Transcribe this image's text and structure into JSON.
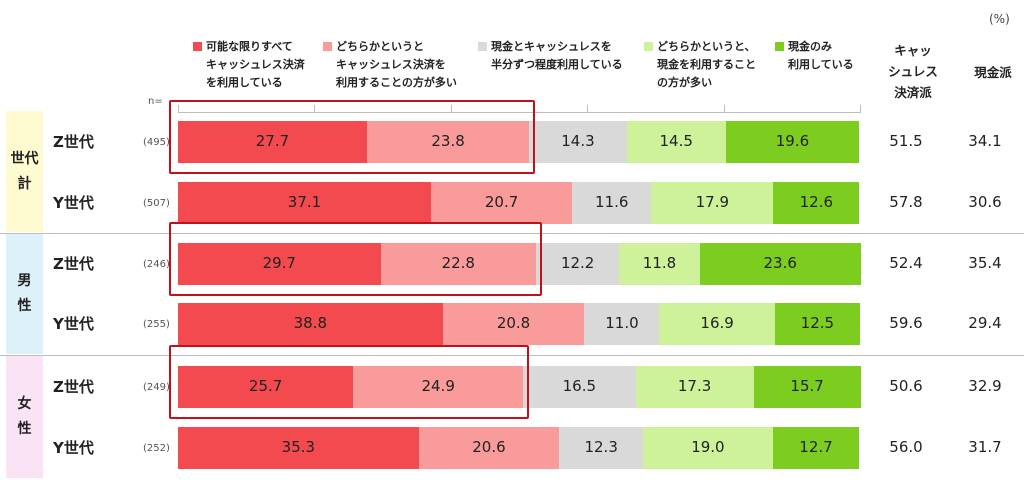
{
  "unit_label": "(%)",
  "n_prefix": "n=",
  "legend": [
    {
      "label": "可能な限りすべて\nキャッシュレス決済\nを利用している",
      "color": "#f24a4e"
    },
    {
      "label": "どちらかというと\nキャッシュレス決済を\n利用することの方が多い",
      "color": "#f99a9b"
    },
    {
      "label": "現金とキャッシュレスを\n半分ずつ程度利用している",
      "color": "#d9d9d9"
    },
    {
      "label": "どちらかというと、\n現金を利用すること\nの方が多い",
      "color": "#cdf29a"
    },
    {
      "label": "現金のみ\n利用している",
      "color": "#7ccd1f"
    }
  ],
  "summary_headers": [
    "キャッ\nシュレス\n決済派",
    "現金派"
  ],
  "groups": [
    {
      "label": "世代\n計",
      "bg": "#fffbd1"
    },
    {
      "label": "男\n性",
      "bg": "#ddf1fb"
    },
    {
      "label": "女\n性",
      "bg": "#fbe3f6"
    }
  ],
  "chart_data": {
    "type": "bar",
    "orientation": "horizontal",
    "stacked": true,
    "unit": "%",
    "categories": [
      "Z世代",
      "Y世代",
      "Z世代",
      "Y世代",
      "Z世代",
      "Y世代"
    ],
    "group_of_row": [
      0,
      0,
      1,
      1,
      2,
      2
    ],
    "n": [
      "(495)",
      "(507)",
      "(246)",
      "(255)",
      "(249)",
      "(252)"
    ],
    "series": [
      {
        "name": "可能な限りすべてキャッシュレス決済を利用している",
        "values": [
          27.7,
          37.1,
          29.7,
          38.8,
          25.7,
          35.3
        ]
      },
      {
        "name": "どちらかというとキャッシュレス決済を利用することの方が多い",
        "values": [
          23.8,
          20.7,
          22.8,
          20.8,
          24.9,
          20.6
        ]
      },
      {
        "name": "現金とキャッシュレスを半分ずつ程度利用している",
        "values": [
          14.3,
          11.6,
          12.2,
          11.0,
          16.5,
          12.3
        ]
      },
      {
        "name": "どちらかというと、現金を利用することの方が多い",
        "values": [
          14.5,
          17.9,
          11.8,
          16.9,
          17.3,
          19.0
        ]
      },
      {
        "name": "現金のみ利用している",
        "values": [
          19.6,
          12.6,
          23.6,
          12.5,
          15.7,
          12.7
        ]
      }
    ],
    "summary": {
      "キャッシュレス決済派": [
        51.5,
        57.8,
        52.4,
        59.6,
        50.6,
        56.0
      ],
      "現金派": [
        34.1,
        30.6,
        35.4,
        29.4,
        32.9,
        31.7
      ]
    },
    "xlim": [
      0,
      100
    ],
    "highlighted_rows": [
      0,
      2,
      4
    ]
  }
}
